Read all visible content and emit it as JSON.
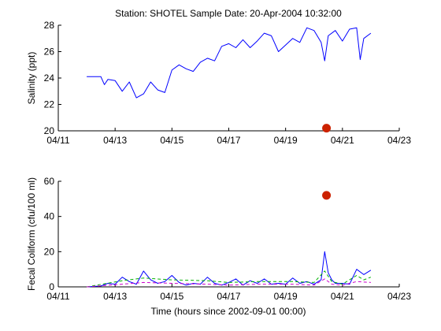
{
  "figure": {
    "title": "Station: SHOTEL  Sample Date: 20-Apr-2004 10:32:00",
    "xlabel": "Time (hours since 2002-09-01 00:00)"
  },
  "colors": {
    "primary": "#0000ff",
    "sample": "#cc2200",
    "secondary": "#00b000",
    "tertiary": "#cc00cc"
  },
  "chart_data": [
    {
      "type": "line",
      "panel": "salinity",
      "ylabel": "Salinity (ppt)",
      "xlim": [
        "2004-04-11",
        "2004-04-23"
      ],
      "ylim": [
        20,
        28
      ],
      "x_ticks": [
        "04/11",
        "04/13",
        "04/15",
        "04/17",
        "04/19",
        "04/21",
        "04/23"
      ],
      "y_ticks": [
        20,
        22,
        24,
        26,
        28
      ],
      "series": [
        {
          "color": "#0000ff",
          "x": [
            "2004-04-12 00:00",
            "2004-04-12 12:00",
            "2004-04-12 15:00",
            "2004-04-12 18:00",
            "2004-04-13 00:00",
            "2004-04-13 06:00",
            "2004-04-13 12:00",
            "2004-04-13 18:00",
            "2004-04-14 00:00",
            "2004-04-14 06:00",
            "2004-04-14 12:00",
            "2004-04-14 18:00",
            "2004-04-15 00:00",
            "2004-04-15 06:00",
            "2004-04-15 12:00",
            "2004-04-15 18:00",
            "2004-04-16 00:00",
            "2004-04-16 06:00",
            "2004-04-16 12:00",
            "2004-04-16 18:00",
            "2004-04-17 00:00",
            "2004-04-17 06:00",
            "2004-04-17 12:00",
            "2004-04-17 18:00",
            "2004-04-18 00:00",
            "2004-04-18 06:00",
            "2004-04-18 12:00",
            "2004-04-18 18:00",
            "2004-04-19 00:00",
            "2004-04-19 06:00",
            "2004-04-19 12:00",
            "2004-04-19 18:00",
            "2004-04-20 00:00",
            "2004-04-20 06:00",
            "2004-04-20 09:00",
            "2004-04-20 12:00",
            "2004-04-20 18:00",
            "2004-04-21 00:00",
            "2004-04-21 06:00",
            "2004-04-21 12:00",
            "2004-04-21 15:00",
            "2004-04-21 18:00",
            "2004-04-22 00:00"
          ],
          "y": [
            24.1,
            24.1,
            23.5,
            23.9,
            23.8,
            23.0,
            23.7,
            22.5,
            22.8,
            23.7,
            23.1,
            22.9,
            24.6,
            25.0,
            24.7,
            24.5,
            25.2,
            25.5,
            25.3,
            26.4,
            26.6,
            26.3,
            26.9,
            26.3,
            26.8,
            27.4,
            27.2,
            26.0,
            26.5,
            27.0,
            26.7,
            27.8,
            27.6,
            26.7,
            25.3,
            27.2,
            27.6,
            26.8,
            27.7,
            27.8,
            25.4,
            27.0,
            27.4
          ]
        }
      ],
      "sample_point": {
        "x": "2004-04-20 10:32",
        "y": 20.2
      }
    },
    {
      "type": "line",
      "panel": "fecal",
      "ylabel": "Fecal Coliform (cfu/100 ml)",
      "xlim": [
        "2004-04-11",
        "2004-04-23"
      ],
      "ylim": [
        0,
        60
      ],
      "x_ticks": [
        "04/11",
        "04/13",
        "04/15",
        "04/17",
        "04/19",
        "04/21",
        "04/23"
      ],
      "y_ticks": [
        0,
        20,
        40,
        60
      ],
      "series": [
        {
          "color": "#0000ff",
          "x": [
            "2004-04-12 00:00",
            "2004-04-12 12:00",
            "2004-04-12 18:00",
            "2004-04-13 00:00",
            "2004-04-13 06:00",
            "2004-04-13 12:00",
            "2004-04-13 18:00",
            "2004-04-14 00:00",
            "2004-04-14 06:00",
            "2004-04-14 12:00",
            "2004-04-14 18:00",
            "2004-04-15 00:00",
            "2004-04-15 06:00",
            "2004-04-15 12:00",
            "2004-04-15 18:00",
            "2004-04-16 00:00",
            "2004-04-16 06:00",
            "2004-04-16 12:00",
            "2004-04-16 18:00",
            "2004-04-17 00:00",
            "2004-04-17 06:00",
            "2004-04-17 12:00",
            "2004-04-17 18:00",
            "2004-04-18 00:00",
            "2004-04-18 06:00",
            "2004-04-18 12:00",
            "2004-04-18 18:00",
            "2004-04-19 00:00",
            "2004-04-19 06:00",
            "2004-04-19 12:00",
            "2004-04-19 18:00",
            "2004-04-20 00:00",
            "2004-04-20 06:00",
            "2004-04-20 09:00",
            "2004-04-20 12:00",
            "2004-04-20 15:00",
            "2004-04-20 18:00",
            "2004-04-21 00:00",
            "2004-04-21 06:00",
            "2004-04-21 12:00",
            "2004-04-21 18:00",
            "2004-04-22 00:00"
          ],
          "y": [
            0,
            0.5,
            2.0,
            1.5,
            5.5,
            3.0,
            1.5,
            9.0,
            4.0,
            2.0,
            3.0,
            6.5,
            2.5,
            1.0,
            2.0,
            1.5,
            5.5,
            2.0,
            1.0,
            2.5,
            4.5,
            1.0,
            3.5,
            2.0,
            4.5,
            1.5,
            2.0,
            1.5,
            5.0,
            2.0,
            3.0,
            1.5,
            4.0,
            20.0,
            8.0,
            4.0,
            2.0,
            2.0,
            1.5,
            10.0,
            7.0,
            9.5
          ]
        },
        {
          "color": "#00b000",
          "style": "dashed",
          "x": [
            "2004-04-12 00:00",
            "2004-04-13 06:00",
            "2004-04-14 00:00",
            "2004-04-15 00:00",
            "2004-04-16 06:00",
            "2004-04-17 00:00",
            "2004-04-18 00:00",
            "2004-04-19 06:00",
            "2004-04-20 00:00",
            "2004-04-20 09:00",
            "2004-04-20 15:00",
            "2004-04-21 00:00",
            "2004-04-21 12:00",
            "2004-04-21 18:00",
            "2004-04-22 00:00"
          ],
          "y": [
            0,
            3.5,
            5.0,
            4.0,
            3.5,
            2.5,
            3.0,
            3.0,
            2.5,
            9.0,
            3.0,
            1.5,
            6.5,
            4.0,
            5.5
          ]
        },
        {
          "color": "#cc00cc",
          "style": "dashed",
          "x": [
            "2004-04-12 00:00",
            "2004-04-13 06:00",
            "2004-04-14 00:00",
            "2004-04-15 00:00",
            "2004-04-16 06:00",
            "2004-04-17 00:00",
            "2004-04-18 00:00",
            "2004-04-19 06:00",
            "2004-04-20 00:00",
            "2004-04-20 09:00",
            "2004-04-20 15:00",
            "2004-04-21 00:00",
            "2004-04-21 12:00",
            "2004-04-22 00:00"
          ],
          "y": [
            0,
            1.5,
            2.5,
            2.0,
            1.5,
            1.0,
            1.5,
            1.5,
            1.0,
            4.5,
            1.5,
            1.0,
            3.0,
            2.5
          ]
        }
      ],
      "sample_point": {
        "x": "2004-04-20 10:32",
        "y": 52
      }
    }
  ]
}
